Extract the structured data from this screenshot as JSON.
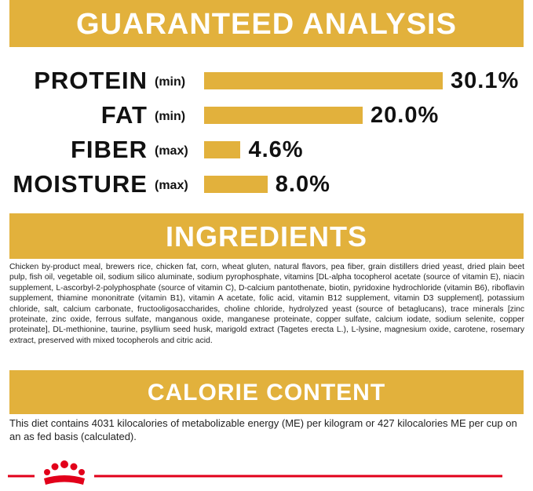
{
  "header": {
    "title": "GUARANTEED ANALYSIS"
  },
  "analysis": [
    {
      "name": "PROTEIN",
      "basis": "(min)",
      "value": 30.1,
      "value_label": "30.1%"
    },
    {
      "name": "FAT",
      "basis": "(min)",
      "value": 20.0,
      "value_label": "20.0%"
    },
    {
      "name": "FIBER",
      "basis": "(max)",
      "value": 4.6,
      "value_label": "4.6%"
    },
    {
      "name": "MOISTURE",
      "basis": "(max)",
      "value": 8.0,
      "value_label": "8.0%"
    }
  ],
  "ingredients": {
    "title": "INGREDIENTS",
    "text": "Chicken by-product meal, brewers rice, chicken fat, corn, wheat gluten, natural flavors, pea fiber, grain distillers dried yeast, dried plain beet pulp, fish oil, vegetable oil, sodium silico aluminate, sodium pyrophosphate, vitamins [DL-alpha tocopherol acetate (source of vitamin E), niacin supplement, L-ascorbyl-2-polyphosphate (source of vitamin C), D-calcium pantothenate, biotin, pyridoxine hydrochloride (vitamin B6), riboflavin supplement, thiamine mononitrate (vitamin B1), vitamin A acetate, folic acid, vitamin B12 supplement, vitamin D3 supplement], potassium chloride, salt, calcium carbonate, fructooligosaccharides, choline chloride, hydrolyzed yeast (source of betaglucans), trace minerals [zinc proteinate, zinc oxide, ferrous sulfate, manganous oxide, manganese proteinate, copper sulfate, calcium iodate, sodium selenite, copper proteinate], DL-methionine, taurine, psyllium seed husk, marigold extract (Tagetes erecta L.), L-lysine, magnesium oxide, carotene, rosemary extract, preserved with mixed tocopherols and citric acid."
  },
  "calorie": {
    "title": "CALORIE CONTENT",
    "text": "This diet contains 4031 kilocalories of metabolizable energy (ME) per kilogram or 427 kilocalories ME per cup on an as fed basis (calculated)."
  }
}
